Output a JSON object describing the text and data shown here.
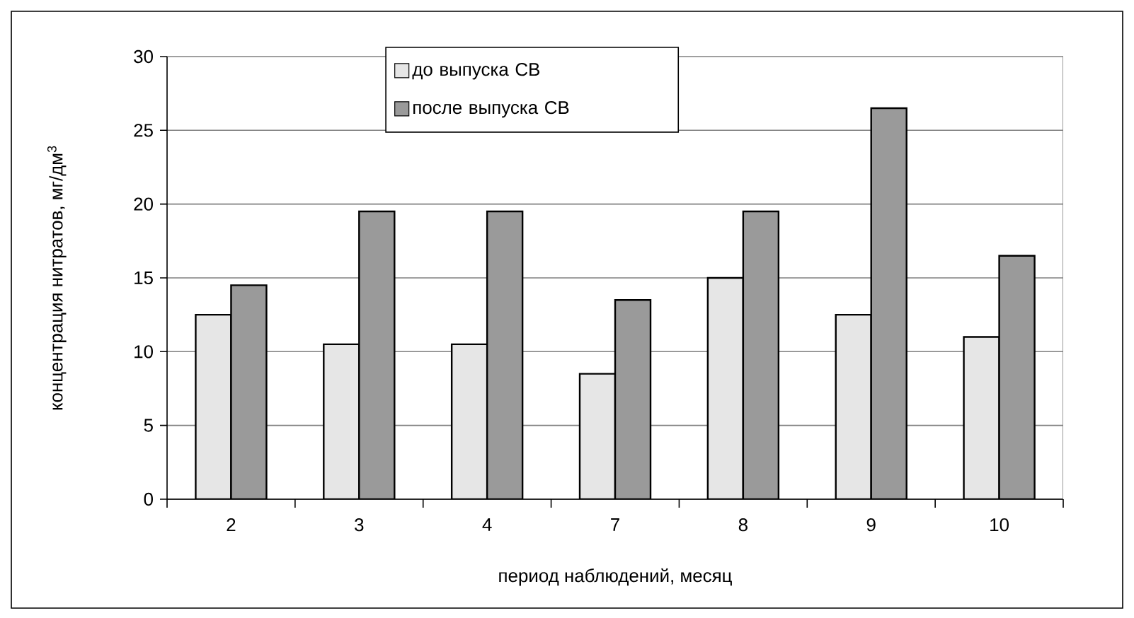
{
  "chart_data": {
    "type": "bar",
    "xlabel": "период наблюдений, месяц",
    "ylabel": "концентрация нитратов, мг/дм$^{3}$",
    "categories": [
      "2",
      "3",
      "4",
      "7",
      "8",
      "9",
      "10"
    ],
    "series": [
      {
        "name": "до выпуска СВ",
        "color": "#e6e6e6",
        "values": [
          12.5,
          10.5,
          10.5,
          8.5,
          15,
          12.5,
          11
        ]
      },
      {
        "name": "после выпуска СВ",
        "color": "#9a9a9a",
        "values": [
          14.5,
          19.5,
          19.5,
          13.5,
          19.5,
          26.5,
          16.5
        ]
      }
    ],
    "ylim": [
      0,
      30
    ],
    "yticks": [
      0,
      5,
      10,
      15,
      20,
      25,
      30
    ],
    "grid": "y",
    "legend": "top"
  }
}
